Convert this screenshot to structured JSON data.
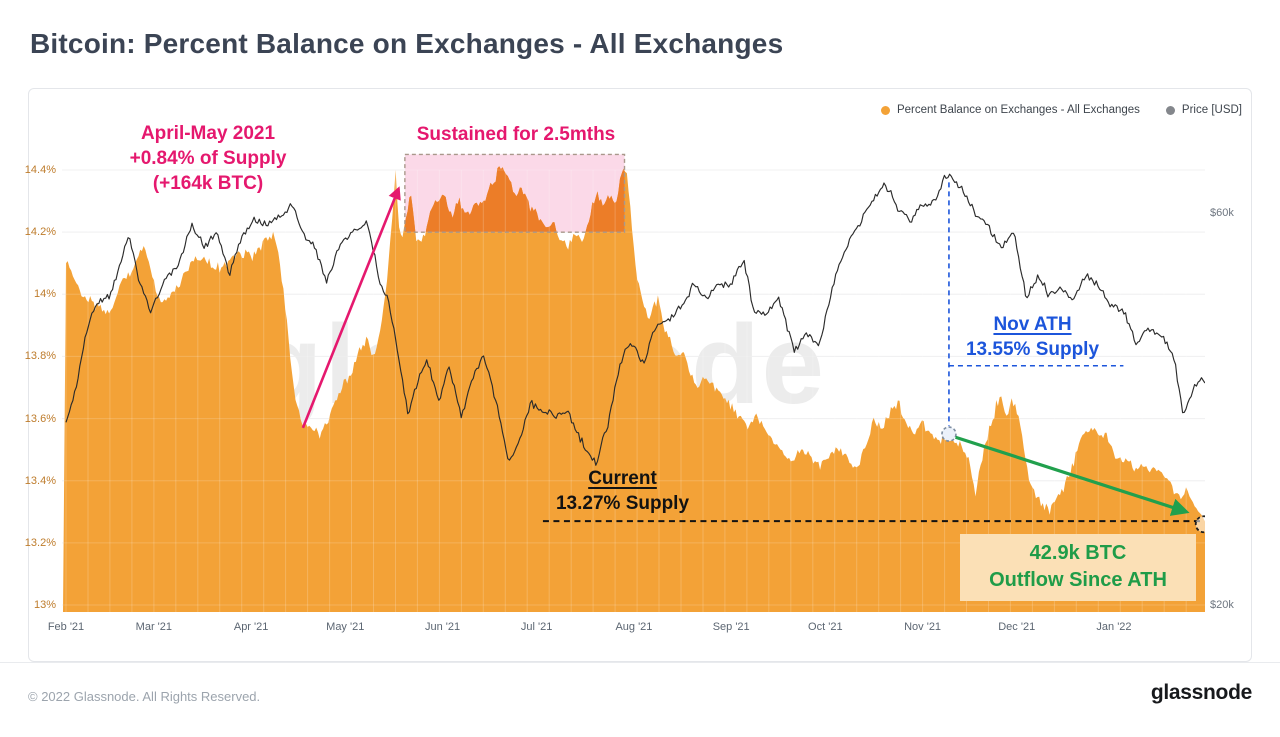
{
  "page": {
    "title": "Bitcoin: Percent Balance on Exchanges - All Exchanges",
    "footer": {
      "copyright": "© 2022 Glassnode. All Rights Reserved.",
      "logo_text": "glassnode"
    }
  },
  "watermark": "glassnode",
  "legend": {
    "items": [
      {
        "label": "Percent Balance on Exchanges - All Exchanges",
        "color": "#F3A237"
      },
      {
        "label": "Price [USD]",
        "color": "#84878C"
      }
    ]
  },
  "chart_data": {
    "type": "area+line",
    "title": "Bitcoin: Percent Balance on Exchanges - All Exchanges",
    "x_axis": {
      "labels": [
        "Feb '21",
        "Mar '21",
        "Apr '21",
        "May '21",
        "Jun '21",
        "Jul '21",
        "Aug '21",
        "Sep '21",
        "Oct '21",
        "Nov '21",
        "Dec '21",
        "Jan '22"
      ],
      "month_start_days": [
        0,
        28,
        59,
        89,
        120,
        150,
        181,
        212,
        242,
        273,
        303,
        334
      ],
      "days_total": 363
    },
    "y_left": {
      "unit": "%",
      "range": [
        13,
        14.4
      ],
      "color": "#BE7C2C",
      "ticks": [
        {
          "label": "13%",
          "value": 13
        },
        {
          "label": "13.2%",
          "value": 13.2
        },
        {
          "label": "13.4%",
          "value": 13.4
        },
        {
          "label": "13.6%",
          "value": 13.6
        },
        {
          "label": "13.8%",
          "value": 13.8
        },
        {
          "label": "14%",
          "value": 14
        },
        {
          "label": "14.2%",
          "value": 14.2
        },
        {
          "label": "14.4%",
          "value": 14.4
        }
      ]
    },
    "y_right": {
      "unit": "$k",
      "scale": "log",
      "ticks": [
        {
          "label": "$60k",
          "value": 60
        },
        {
          "label": "$20k",
          "value": 20
        }
      ]
    },
    "series": [
      {
        "name": "Percent Balance on Exchanges - All Exchanges",
        "type": "area",
        "color": "#F3A237",
        "points": [
          [
            0,
            14.12
          ],
          [
            2,
            14.05
          ],
          [
            4.5,
            14.02
          ],
          [
            7,
            13.98
          ],
          [
            11,
            13.96
          ],
          [
            14,
            13.93
          ],
          [
            17,
            14.02
          ],
          [
            20,
            14.06
          ],
          [
            23,
            14.12
          ],
          [
            25,
            14.16
          ],
          [
            27,
            14.08
          ],
          [
            30,
            13.97
          ],
          [
            33,
            13.99
          ],
          [
            36,
            14.03
          ],
          [
            39.5,
            14.09
          ],
          [
            43,
            14.12
          ],
          [
            46,
            14.1
          ],
          [
            49,
            14.08
          ],
          [
            52,
            14.11
          ],
          [
            55.5,
            14.13
          ],
          [
            59,
            14.12
          ],
          [
            62.5,
            14.16
          ],
          [
            66,
            14.2
          ],
          [
            68,
            14.12
          ],
          [
            70,
            13.95
          ],
          [
            72,
            13.75
          ],
          [
            74,
            13.62
          ],
          [
            76,
            13.58
          ],
          [
            79,
            13.56
          ],
          [
            81,
            13.55
          ],
          [
            83.5,
            13.6
          ],
          [
            86,
            13.66
          ],
          [
            88.5,
            13.71
          ],
          [
            91,
            13.75
          ],
          [
            93.5,
            13.82
          ],
          [
            96,
            13.86
          ],
          [
            98,
            13.79
          ],
          [
            100,
            13.88
          ],
          [
            102,
            14.02
          ],
          [
            103.5,
            14.18
          ],
          [
            105,
            14.4
          ],
          [
            106,
            14.22
          ],
          [
            107,
            14.18
          ],
          [
            108.3,
            14.25
          ],
          [
            110,
            14.32
          ],
          [
            111.5,
            14.18
          ],
          [
            113,
            14.16
          ],
          [
            115.5,
            14.24
          ],
          [
            118,
            14.3
          ],
          [
            120.5,
            14.32
          ],
          [
            123,
            14.25
          ],
          [
            125.5,
            14.3
          ],
          [
            128,
            14.26
          ],
          [
            131,
            14.29
          ],
          [
            133.5,
            14.31
          ],
          [
            136,
            14.36
          ],
          [
            138.3,
            14.41
          ],
          [
            141,
            14.38
          ],
          [
            143,
            14.31
          ],
          [
            145.6,
            14.34
          ],
          [
            148,
            14.28
          ],
          [
            150.4,
            14.26
          ],
          [
            152.6,
            14.21
          ],
          [
            155.2,
            14.23
          ],
          [
            157.4,
            14.17
          ],
          [
            160,
            14.15
          ],
          [
            162.2,
            14.19
          ],
          [
            164.8,
            14.17
          ],
          [
            167,
            14.26
          ],
          [
            169.2,
            14.33
          ],
          [
            171.1,
            14.29
          ],
          [
            173.4,
            14.31
          ],
          [
            175.3,
            14.29
          ],
          [
            176.9,
            14.39
          ],
          [
            178.5,
            14.42
          ],
          [
            179.7,
            14.3
          ],
          [
            180.7,
            14.18
          ],
          [
            182,
            14.05
          ],
          [
            184,
            13.97
          ],
          [
            186,
            13.92
          ],
          [
            188.6,
            13.99
          ],
          [
            190.5,
            13.9
          ],
          [
            192.5,
            13.85
          ],
          [
            194.7,
            13.79
          ],
          [
            197,
            13.82
          ],
          [
            199.2,
            13.74
          ],
          [
            201.4,
            13.71
          ],
          [
            204,
            13.73
          ],
          [
            206.5,
            13.7
          ],
          [
            209,
            13.68
          ],
          [
            211.6,
            13.64
          ],
          [
            214.4,
            13.61
          ],
          [
            217.3,
            13.57
          ],
          [
            220.2,
            13.61
          ],
          [
            223,
            13.56
          ],
          [
            226,
            13.52
          ],
          [
            228.8,
            13.48
          ],
          [
            231.7,
            13.46
          ],
          [
            234.6,
            13.5
          ],
          [
            237.4,
            13.47
          ],
          [
            240.3,
            13.45
          ],
          [
            243.2,
            13.48
          ],
          [
            246,
            13.51
          ],
          [
            249,
            13.47
          ],
          [
            251.8,
            13.44
          ],
          [
            254.6,
            13.51
          ],
          [
            257.5,
            13.6
          ],
          [
            260.4,
            13.57
          ],
          [
            263.3,
            13.63
          ],
          [
            265.5,
            13.65
          ],
          [
            267.7,
            13.58
          ],
          [
            270.2,
            13.55
          ],
          [
            272.8,
            13.59
          ],
          [
            275.4,
            13.55
          ],
          [
            277.9,
            13.52
          ],
          [
            279.8,
            13.54
          ],
          [
            281.4,
            13.55
          ],
          [
            283.3,
            13.53
          ],
          [
            285.6,
            13.5
          ],
          [
            287.5,
            13.47
          ],
          [
            289,
            13.4
          ],
          [
            290,
            13.34
          ],
          [
            291.3,
            13.45
          ],
          [
            292.9,
            13.52
          ],
          [
            294.8,
            13.58
          ],
          [
            296.4,
            13.64
          ],
          [
            298,
            13.68
          ],
          [
            299.6,
            13.6
          ],
          [
            301.5,
            13.66
          ],
          [
            303.4,
            13.62
          ],
          [
            305.3,
            13.5
          ],
          [
            307.2,
            13.4
          ],
          [
            309.1,
            13.35
          ],
          [
            311.4,
            13.32
          ],
          [
            313.6,
            13.3
          ],
          [
            315.8,
            13.35
          ],
          [
            318,
            13.38
          ],
          [
            320.3,
            13.43
          ],
          [
            322.5,
            13.5
          ],
          [
            324.7,
            13.55
          ],
          [
            327,
            13.58
          ],
          [
            329.2,
            13.53
          ],
          [
            331.4,
            13.55
          ],
          [
            333.6,
            13.49
          ],
          [
            335.9,
            13.47
          ],
          [
            338.4,
            13.46
          ],
          [
            341,
            13.44
          ],
          [
            343.5,
            13.45
          ],
          [
            346,
            13.44
          ],
          [
            348.6,
            13.43
          ],
          [
            351.1,
            13.4
          ],
          [
            353.4,
            13.36
          ],
          [
            355.3,
            13.34
          ],
          [
            357.2,
            13.37
          ],
          [
            359.1,
            13.33
          ],
          [
            361,
            13.3
          ],
          [
            363,
            13.27
          ]
        ]
      },
      {
        "name": "Price [USD]",
        "type": "line",
        "color": "#2B2B2B",
        "unit": "$k",
        "points": [
          [
            0,
            33.5
          ],
          [
            3,
            36.5
          ],
          [
            7,
            44
          ],
          [
            11,
            47
          ],
          [
            14,
            47.5
          ],
          [
            17,
            51.5
          ],
          [
            20,
            56.5
          ],
          [
            23,
            50
          ],
          [
            27,
            45.5
          ],
          [
            31,
            49.5
          ],
          [
            36,
            52
          ],
          [
            40,
            58
          ],
          [
            44,
            54.5
          ],
          [
            48,
            57
          ],
          [
            52,
            50.5
          ],
          [
            56,
            56
          ],
          [
            60,
            59
          ],
          [
            64,
            58
          ],
          [
            68,
            59.5
          ],
          [
            72,
            61.5
          ],
          [
            76,
            56
          ],
          [
            79,
            55
          ],
          [
            83,
            49.5
          ],
          [
            87,
            54.5
          ],
          [
            91,
            57
          ],
          [
            96,
            58.5
          ],
          [
            100,
            49.5
          ],
          [
            103,
            46.5
          ],
          [
            107,
            38
          ],
          [
            109,
            33.8
          ],
          [
            112,
            37.5
          ],
          [
            115,
            39.5
          ],
          [
            119,
            35.5
          ],
          [
            122,
            38.8
          ],
          [
            126,
            33.8
          ],
          [
            129,
            37.2
          ],
          [
            133,
            40.3
          ],
          [
            137,
            35.5
          ],
          [
            141,
            29.8
          ],
          [
            145,
            32
          ],
          [
            148,
            35.2
          ],
          [
            152,
            34.5
          ],
          [
            156,
            34
          ],
          [
            160,
            34.3
          ],
          [
            164,
            31.8
          ],
          [
            169,
            29.7
          ],
          [
            173,
            33.5
          ],
          [
            177,
            39.8
          ],
          [
            180,
            41.8
          ],
          [
            184,
            39.3
          ],
          [
            188,
            43.8
          ],
          [
            192,
            44.5
          ],
          [
            196,
            46.2
          ],
          [
            200,
            49
          ],
          [
            204,
            47.3
          ],
          [
            208,
            48.9
          ],
          [
            212,
            49.3
          ],
          [
            216,
            52.6
          ],
          [
            219,
            45.8
          ],
          [
            223,
            44.9
          ],
          [
            227,
            47.5
          ],
          [
            232,
            40.7
          ],
          [
            236,
            42.8
          ],
          [
            240,
            41.4
          ],
          [
            244,
            48.2
          ],
          [
            248,
            54
          ],
          [
            252,
            57.3
          ],
          [
            256,
            61.5
          ],
          [
            261,
            65.3
          ],
          [
            265,
            60.8
          ],
          [
            269,
            58.6
          ],
          [
            273,
            61.2
          ],
          [
            277,
            61.8
          ],
          [
            280,
            66.2
          ],
          [
            282,
            66.9
          ],
          [
            286,
            63.8
          ],
          [
            290,
            59.8
          ],
          [
            294,
            57.8
          ],
          [
            298,
            54.3
          ],
          [
            302,
            56.8
          ],
          [
            306,
            47.2
          ],
          [
            310,
            50.3
          ],
          [
            313,
            47.8
          ],
          [
            317,
            48.6
          ],
          [
            321,
            46.6
          ],
          [
            325,
            50.8
          ],
          [
            329,
            48.9
          ],
          [
            333,
            46.1
          ],
          [
            337,
            45.7
          ],
          [
            341,
            41.6
          ],
          [
            345,
            43.4
          ],
          [
            349,
            42.6
          ],
          [
            353,
            40.2
          ],
          [
            356,
            34.2
          ],
          [
            359,
            36.3
          ],
          [
            361,
            37.8
          ],
          [
            363,
            37.3
          ]
        ]
      }
    ],
    "annotations": {
      "april_may": {
        "text_lines": [
          "April-May 2021",
          "+0.84% of Supply",
          "(+164k BTC)"
        ],
        "color": "#E5186E"
      },
      "sustained": {
        "text": "Sustained for 2.5mths",
        "color": "#E5186E",
        "region": {
          "day_start": 108,
          "day_end": 178,
          "pct_bottom": 14.2,
          "pct_top": 14.45,
          "fill": "#FBD9E8",
          "highlight_fill": "#EC7D28",
          "border": "#A9988B"
        }
      },
      "magenta_arrow": {
        "from": {
          "day": 75.5,
          "pct": 13.57
        },
        "to": {
          "day": 106,
          "pct": 14.34
        },
        "color": "#E5186E"
      },
      "nov_ath": {
        "text_lines": [
          "Nov ATH",
          "13.55% Supply"
        ],
        "color": "#1C55DB",
        "marker": {
          "day": 281.4,
          "pct": 13.55
        },
        "vline_top_pct": 14.36,
        "hline_pct": 13.77,
        "hline_end_day": 337
      },
      "current": {
        "text_lines": [
          "Current",
          "13.27% Supply"
        ],
        "color": "#121212",
        "pct": 13.27,
        "line_start_day": 152,
        "line_end_day": 362.5
      },
      "green_arrow": {
        "from": {
          "day": 283.5,
          "pct": 13.54
        },
        "to": {
          "day": 357,
          "pct": 13.3
        },
        "color": "#21A04D"
      },
      "outflow_box": {
        "text_lines": [
          "42.9k BTC",
          "Outflow Since ATH"
        ],
        "color": "#1F9C48",
        "bg": "#FBE0B6"
      },
      "end_marker": {
        "day": 362.6,
        "pct": 13.26
      }
    }
  }
}
